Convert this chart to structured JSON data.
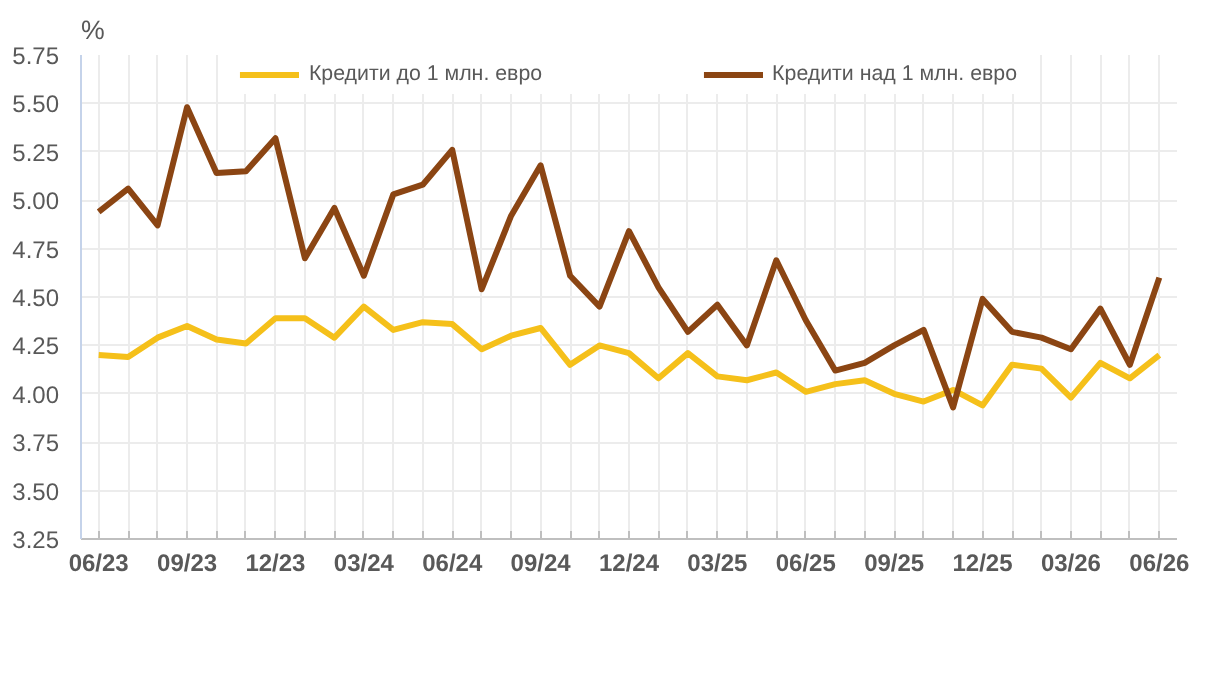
{
  "chart_data": {
    "type": "line",
    "ylabel": "%",
    "categories": [
      "06/23",
      null,
      null,
      "09/23",
      null,
      null,
      "12/23",
      null,
      null,
      "03/24",
      null,
      null,
      "06/24",
      null,
      null,
      "09/24",
      null,
      null,
      "12/24",
      null,
      null,
      "03/25",
      null,
      null,
      "06/25",
      null,
      null,
      "09/25",
      null,
      null,
      "12/25",
      null,
      null,
      "03/26",
      null,
      null,
      "06/26"
    ],
    "series": [
      {
        "name": "Кредити до 1 млн. евро",
        "color": "#f5c01a",
        "values": [
          4.2,
          4.19,
          4.29,
          4.35,
          4.28,
          4.26,
          4.39,
          4.39,
          4.29,
          4.45,
          4.33,
          4.37,
          4.36,
          4.23,
          4.3,
          4.34,
          4.15,
          4.25,
          4.21,
          4.08,
          4.21,
          4.09,
          4.07,
          4.11,
          4.01,
          4.05,
          4.07,
          4.0,
          3.96,
          4.02,
          3.94,
          4.15,
          4.13,
          3.98,
          4.16,
          4.08,
          4.2
        ]
      },
      {
        "name": "Кредити над 1 млн. евро",
        "color": "#8b4513",
        "values": [
          4.94,
          5.06,
          4.87,
          5.48,
          5.14,
          5.15,
          5.32,
          4.7,
          4.96,
          4.61,
          5.03,
          5.08,
          5.26,
          4.54,
          4.92,
          5.18,
          4.61,
          4.45,
          4.84,
          4.55,
          4.32,
          4.46,
          4.25,
          4.69,
          4.38,
          4.12,
          4.16,
          4.25,
          4.33,
          3.93,
          4.49,
          4.32,
          4.29,
          4.23,
          4.44,
          4.15,
          4.6
        ]
      }
    ],
    "ylim": [
      3.25,
      5.75
    ],
    "yticks": [
      3.25,
      {
        "value": 3.5,
        "label": "3.50"
      },
      3.75,
      {
        "value": 4.0,
        "label": "4.00"
      },
      4.25,
      {
        "value": 4.5,
        "label": "4.50"
      },
      4.75,
      {
        "value": 5.0,
        "label": "5.00"
      },
      5.25,
      {
        "value": 5.5,
        "label": "5.50"
      },
      5.75
    ],
    "grid": true,
    "legend": "top",
    "line_style": "solid",
    "marker": "none"
  }
}
